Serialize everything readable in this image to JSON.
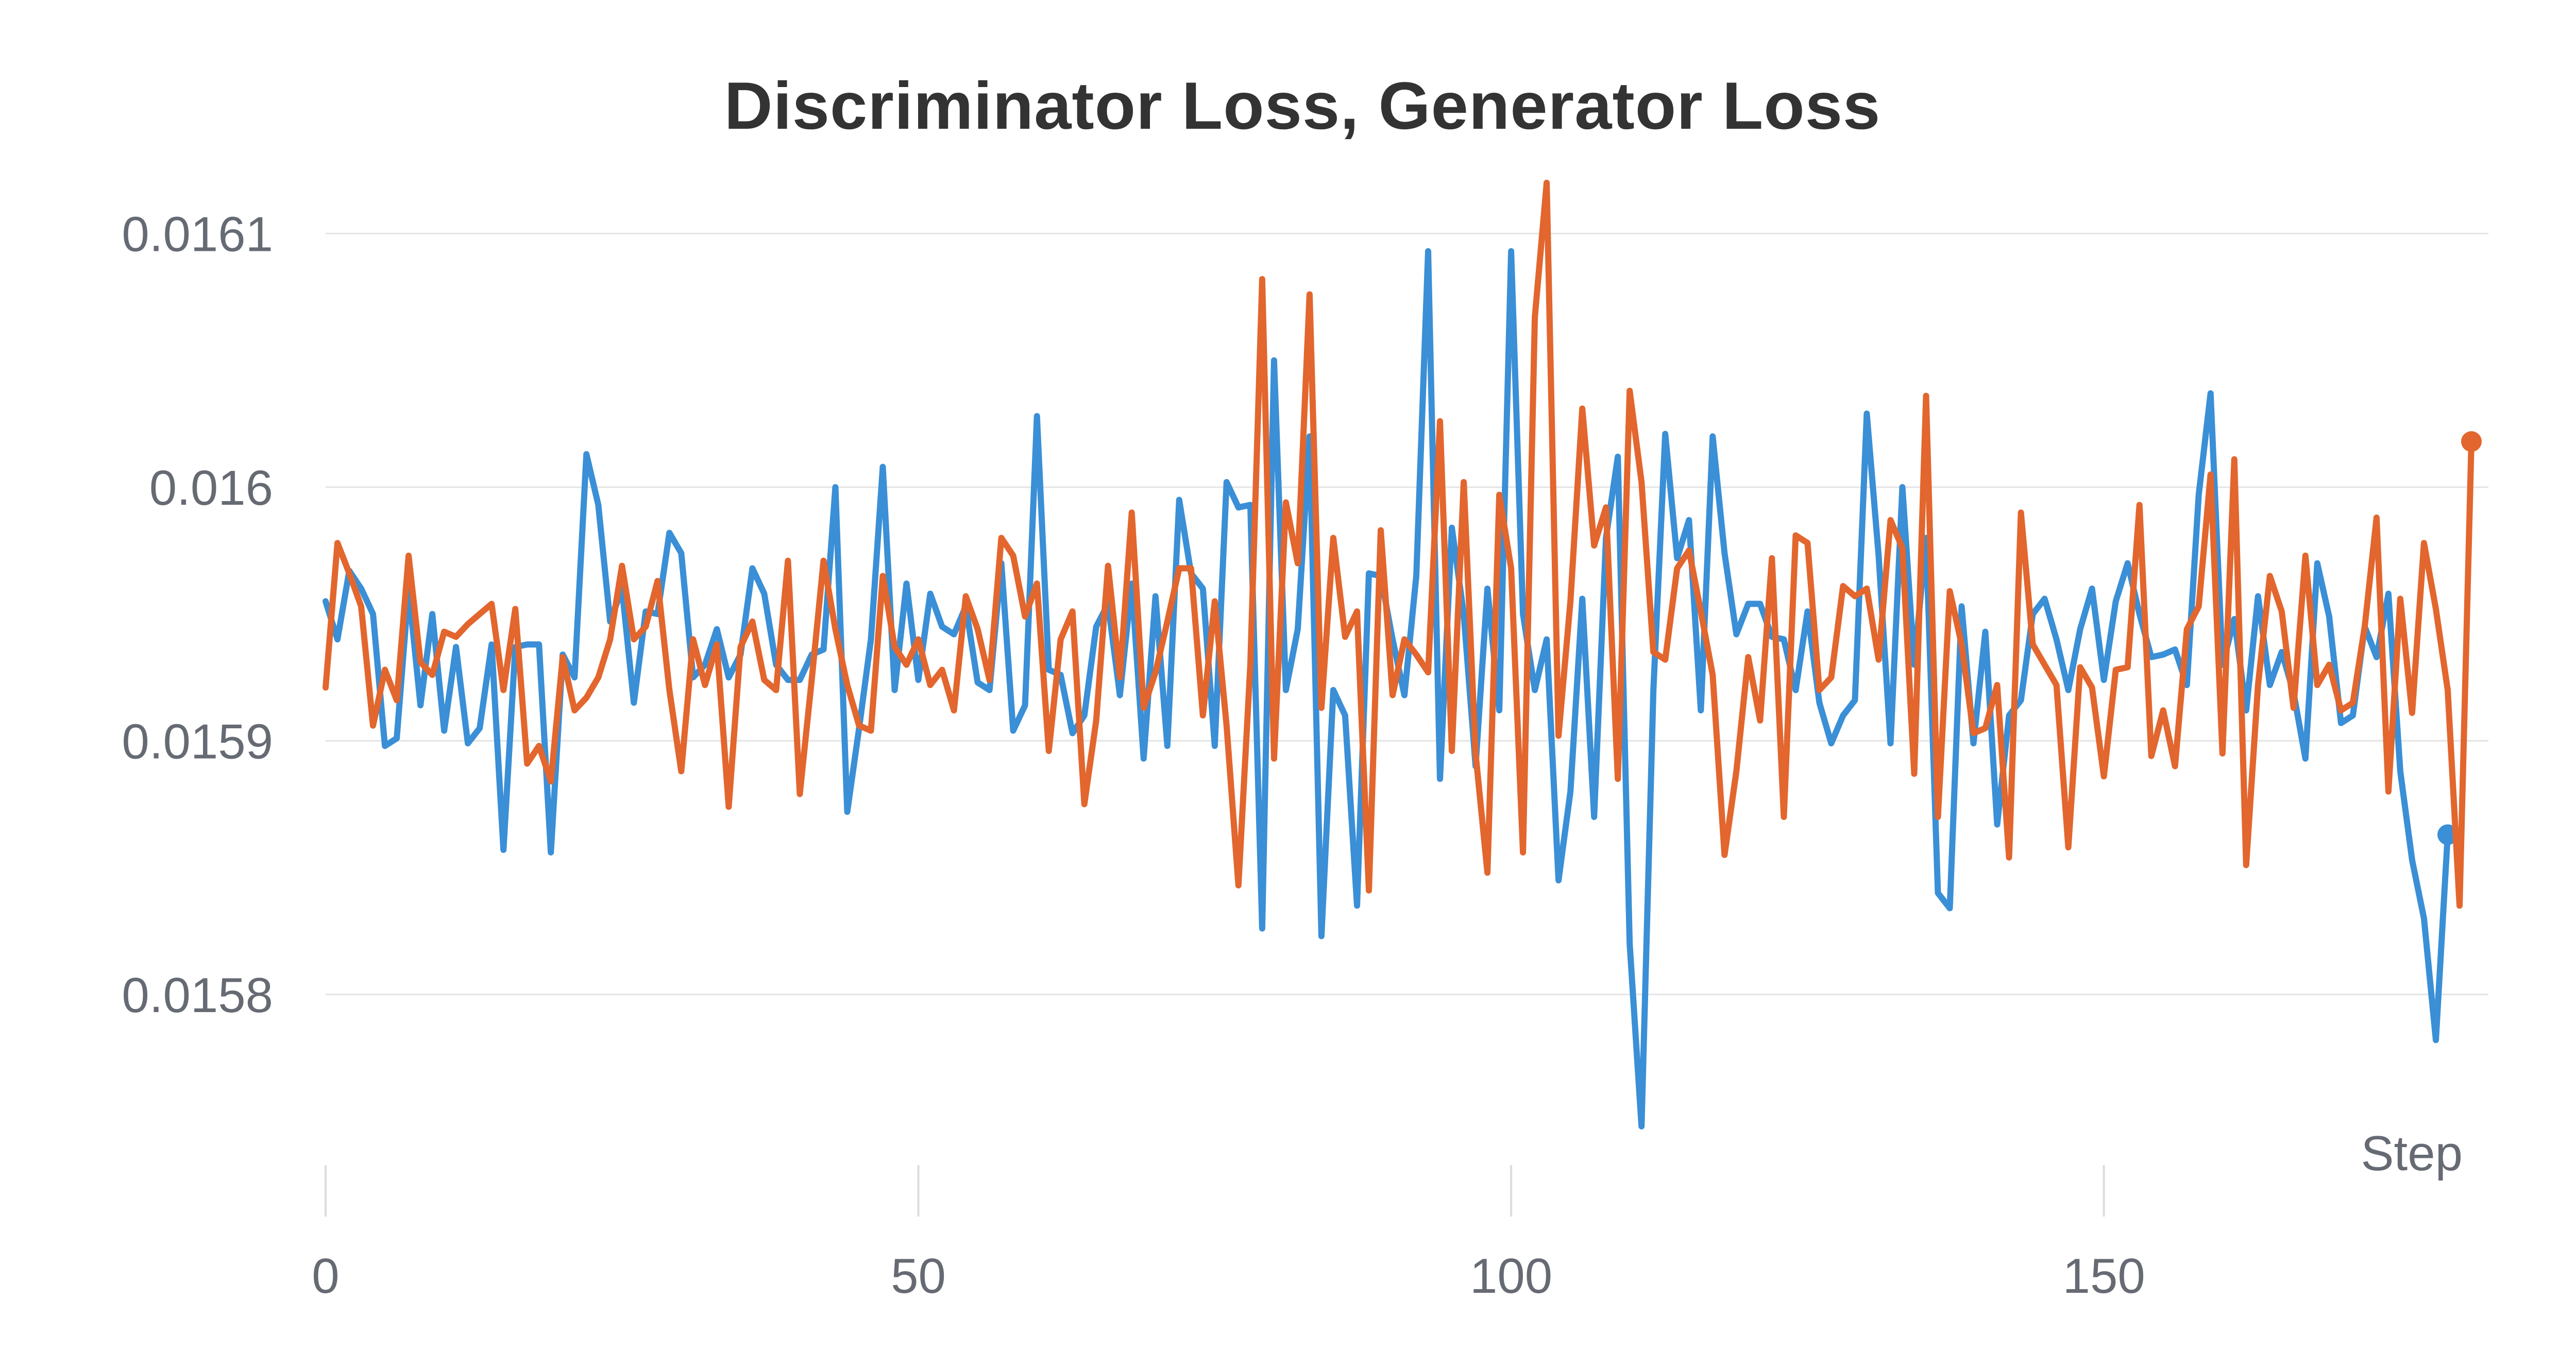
{
  "chart_data": {
    "type": "line",
    "title": "Discriminator Loss, Generator Loss",
    "xlabel": "Step",
    "ylabel": "",
    "xlim": [
      0,
      182
    ],
    "ylim": [
      0.015723,
      0.016122
    ],
    "x_ticks": [
      0,
      50,
      100,
      150
    ],
    "y_ticks": [
      0.0158,
      0.0159,
      0.016,
      0.0161
    ],
    "y_tick_labels": [
      "0.0158",
      "0.0159",
      "0.016",
      "0.0161"
    ],
    "grid": true,
    "legend": "none",
    "series": [
      {
        "color": "#3a8fd6",
        "values": [
          0.015955,
          0.01594,
          0.015967,
          0.01596,
          0.01595,
          0.015898,
          0.015901,
          0.01596,
          0.015914,
          0.01595,
          0.015904,
          0.015937,
          0.015899,
          0.015905,
          0.015938,
          0.015857,
          0.015937,
          0.015938,
          0.015938,
          0.015856,
          0.015934,
          0.015925,
          0.016013,
          0.015993,
          0.015947,
          0.01596,
          0.015915,
          0.015951,
          0.01595,
          0.015982,
          0.015974,
          0.015925,
          0.01593,
          0.015944,
          0.015925,
          0.015934,
          0.015968,
          0.015958,
          0.01593,
          0.015924,
          0.015924,
          0.015934,
          0.015936,
          0.016,
          0.015872,
          0.015905,
          0.01594,
          0.016008,
          0.01592,
          0.015962,
          0.015924,
          0.015958,
          0.015945,
          0.015942,
          0.015953,
          0.015923,
          0.01592,
          0.01597,
          0.015904,
          0.015914,
          0.016028,
          0.015928,
          0.015926,
          0.015903,
          0.01591,
          0.015945,
          0.015954,
          0.015918,
          0.015962,
          0.015893,
          0.015957,
          0.015898,
          0.015995,
          0.015966,
          0.01596,
          0.015898,
          0.016002,
          0.015992,
          0.015993,
          0.015826,
          0.01605,
          0.01592,
          0.015944,
          0.01602,
          0.015823,
          0.01592,
          0.01591,
          0.015835,
          0.015966,
          0.015965,
          0.01594,
          0.015918,
          0.015965,
          0.016093,
          0.015885,
          0.015984,
          0.01595,
          0.01589,
          0.01596,
          0.015912,
          0.016093,
          0.01595,
          0.01592,
          0.01594,
          0.015845,
          0.01588,
          0.015956,
          0.01587,
          0.01598,
          0.016012,
          0.01582,
          0.015748,
          0.01592,
          0.016021,
          0.015972,
          0.015987,
          0.015912,
          0.01602,
          0.015974,
          0.015942,
          0.015954,
          0.015954,
          0.015941,
          0.01594,
          0.01592,
          0.015951,
          0.015915,
          0.015899,
          0.01591,
          0.015916,
          0.016029,
          0.015973,
          0.015899,
          0.016,
          0.01593,
          0.01598,
          0.01584,
          0.015834,
          0.015953,
          0.015899,
          0.015943,
          0.015867,
          0.01591,
          0.015916,
          0.01595,
          0.015956,
          0.01594,
          0.01592,
          0.015944,
          0.01596,
          0.015924,
          0.015955,
          0.01597,
          0.01595,
          0.015933,
          0.015934,
          0.015936,
          0.015922,
          0.015997,
          0.016037,
          0.01593,
          0.015948,
          0.015912,
          0.015957,
          0.015922,
          0.015935,
          0.015919,
          0.015893,
          0.01597,
          0.015949,
          0.015907,
          0.01591,
          0.015945,
          0.015933,
          0.015958,
          0.015888,
          0.015853,
          0.01583,
          0.015782,
          0.015863
        ]
      },
      {
        "color": "#e2662d",
        "values": [
          0.015921,
          0.015978,
          0.015966,
          0.015953,
          0.015906,
          0.015928,
          0.015916,
          0.015973,
          0.015931,
          0.015926,
          0.015943,
          0.015941,
          0.015946,
          0.01595,
          0.015954,
          0.01592,
          0.015952,
          0.015891,
          0.015898,
          0.015884,
          0.015933,
          0.015912,
          0.015917,
          0.015925,
          0.01594,
          0.015969,
          0.01594,
          0.015945,
          0.015963,
          0.01592,
          0.015888,
          0.01594,
          0.015922,
          0.015938,
          0.015874,
          0.015937,
          0.015947,
          0.015924,
          0.01592,
          0.015971,
          0.015879,
          0.015924,
          0.015971,
          0.015944,
          0.015922,
          0.015906,
          0.015904,
          0.015965,
          0.015937,
          0.01593,
          0.01594,
          0.015922,
          0.015928,
          0.015912,
          0.015957,
          0.015944,
          0.015924,
          0.01598,
          0.015973,
          0.015949,
          0.015962,
          0.015896,
          0.01594,
          0.015951,
          0.015875,
          0.015908,
          0.015969,
          0.015925,
          0.01599,
          0.015913,
          0.015927,
          0.015947,
          0.015968,
          0.015968,
          0.01591,
          0.015955,
          0.015906,
          0.015843,
          0.01593,
          0.016082,
          0.015893,
          0.015994,
          0.01597,
          0.016076,
          0.015913,
          0.01598,
          0.015941,
          0.015951,
          0.015841,
          0.015983,
          0.015918,
          0.01594,
          0.015934,
          0.015927,
          0.016026,
          0.015896,
          0.016002,
          0.015895,
          0.015848,
          0.015997,
          0.015968,
          0.015856,
          0.016067,
          0.01612,
          0.015902,
          0.015955,
          0.016031,
          0.015977,
          0.015992,
          0.015885,
          0.016038,
          0.016002,
          0.015935,
          0.015932,
          0.015968,
          0.015975,
          0.015951,
          0.015926,
          0.015855,
          0.015888,
          0.015933,
          0.015908,
          0.015972,
          0.01587,
          0.015981,
          0.015978,
          0.01592,
          0.015925,
          0.015961,
          0.015957,
          0.01596,
          0.015932,
          0.015987,
          0.015976,
          0.015887,
          0.016036,
          0.01587,
          0.015959,
          0.015938,
          0.015903,
          0.015905,
          0.015922,
          0.015854,
          0.01599,
          0.015938,
          0.01593,
          0.015922,
          0.015858,
          0.015929,
          0.015921,
          0.015886,
          0.015928,
          0.015929,
          0.015993,
          0.015894,
          0.015912,
          0.01589,
          0.015944,
          0.015953,
          0.016005,
          0.015895,
          0.016011,
          0.015851,
          0.015922,
          0.015965,
          0.015951,
          0.015913,
          0.015973,
          0.015922,
          0.01593,
          0.015912,
          0.015915,
          0.015945,
          0.015988,
          0.01588,
          0.015956,
          0.015911,
          0.015978,
          0.015952,
          0.01592,
          0.015835,
          0.016018
        ]
      }
    ]
  }
}
